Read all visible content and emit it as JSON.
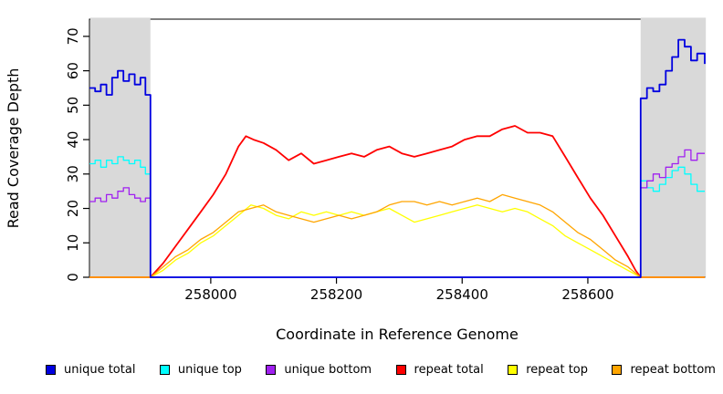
{
  "chart_data": {
    "type": "line",
    "title": "",
    "xlabel": "Coordinate in Reference Genome",
    "ylabel": "Read Coverage Depth",
    "xlim": [
      257807,
      258786
    ],
    "ylim": [
      0,
      75
    ],
    "xticks": [
      258000,
      258200,
      258400,
      258600
    ],
    "yticks": [
      0,
      10,
      20,
      30,
      40,
      50,
      60,
      70
    ],
    "grid": "off",
    "shade_color": "#d9d9d9",
    "shaded_regions": [
      [
        257807,
        257904
      ],
      [
        258684,
        258786
      ]
    ],
    "legend_position": "bottom-horizontal",
    "legend": [
      {
        "label": "unique total",
        "color": "#0000e0"
      },
      {
        "label": "unique top",
        "color": "#00ffff"
      },
      {
        "label": "unique bottom",
        "color": "#a020f0"
      },
      {
        "label": "repeat total",
        "color": "#ff0000"
      },
      {
        "label": "repeat top",
        "color": "#ffff00"
      },
      {
        "label": "repeat bottom",
        "color": "#ffa500"
      }
    ],
    "series": [
      {
        "name": "repeat total",
        "color": "#ff0000",
        "width": 1.8,
        "step": false,
        "points": [
          [
            257807,
            0
          ],
          [
            257904,
            0
          ],
          [
            257924,
            4
          ],
          [
            257944,
            9
          ],
          [
            257964,
            14
          ],
          [
            257984,
            19
          ],
          [
            258004,
            24
          ],
          [
            258024,
            30
          ],
          [
            258044,
            38
          ],
          [
            258056,
            41
          ],
          [
            258068,
            40
          ],
          [
            258084,
            39
          ],
          [
            258104,
            37
          ],
          [
            258124,
            34
          ],
          [
            258144,
            36
          ],
          [
            258164,
            33
          ],
          [
            258184,
            34
          ],
          [
            258204,
            35
          ],
          [
            258224,
            36
          ],
          [
            258244,
            35
          ],
          [
            258264,
            37
          ],
          [
            258284,
            38
          ],
          [
            258304,
            36
          ],
          [
            258324,
            35
          ],
          [
            258344,
            36
          ],
          [
            258364,
            37
          ],
          [
            258384,
            38
          ],
          [
            258404,
            40
          ],
          [
            258424,
            41
          ],
          [
            258444,
            41
          ],
          [
            258464,
            43
          ],
          [
            258484,
            44
          ],
          [
            258504,
            42
          ],
          [
            258524,
            42
          ],
          [
            258544,
            41
          ],
          [
            258564,
            35
          ],
          [
            258584,
            29
          ],
          [
            258604,
            23
          ],
          [
            258624,
            18
          ],
          [
            258644,
            12
          ],
          [
            258664,
            6
          ],
          [
            258676,
            2
          ],
          [
            258684,
            0
          ],
          [
            258786,
            0
          ]
        ]
      },
      {
        "name": "repeat top",
        "color": "#ffff00",
        "width": 1.3,
        "step": false,
        "points": [
          [
            257807,
            0
          ],
          [
            257904,
            0
          ],
          [
            257924,
            2
          ],
          [
            257944,
            5
          ],
          [
            257964,
            7
          ],
          [
            257984,
            10
          ],
          [
            258004,
            12
          ],
          [
            258024,
            15
          ],
          [
            258044,
            18
          ],
          [
            258064,
            21
          ],
          [
            258084,
            20
          ],
          [
            258104,
            18
          ],
          [
            258124,
            17
          ],
          [
            258144,
            19
          ],
          [
            258164,
            18
          ],
          [
            258184,
            19
          ],
          [
            258204,
            18
          ],
          [
            258224,
            19
          ],
          [
            258244,
            18
          ],
          [
            258264,
            19
          ],
          [
            258284,
            20
          ],
          [
            258304,
            18
          ],
          [
            258324,
            16
          ],
          [
            258344,
            17
          ],
          [
            258364,
            18
          ],
          [
            258384,
            19
          ],
          [
            258404,
            20
          ],
          [
            258424,
            21
          ],
          [
            258444,
            20
          ],
          [
            258464,
            19
          ],
          [
            258484,
            20
          ],
          [
            258504,
            19
          ],
          [
            258524,
            17
          ],
          [
            258544,
            15
          ],
          [
            258564,
            12
          ],
          [
            258584,
            10
          ],
          [
            258604,
            8
          ],
          [
            258624,
            6
          ],
          [
            258644,
            4
          ],
          [
            258664,
            2
          ],
          [
            258684,
            0
          ],
          [
            258786,
            0
          ]
        ]
      },
      {
        "name": "repeat bottom",
        "color": "#ffa500",
        "width": 1.3,
        "step": false,
        "points": [
          [
            257807,
            0
          ],
          [
            257904,
            0
          ],
          [
            257924,
            3
          ],
          [
            257944,
            6
          ],
          [
            257964,
            8
          ],
          [
            257984,
            11
          ],
          [
            258004,
            13
          ],
          [
            258024,
            16
          ],
          [
            258044,
            19
          ],
          [
            258064,
            20
          ],
          [
            258084,
            21
          ],
          [
            258104,
            19
          ],
          [
            258124,
            18
          ],
          [
            258144,
            17
          ],
          [
            258164,
            16
          ],
          [
            258184,
            17
          ],
          [
            258204,
            18
          ],
          [
            258224,
            17
          ],
          [
            258244,
            18
          ],
          [
            258264,
            19
          ],
          [
            258284,
            21
          ],
          [
            258304,
            22
          ],
          [
            258324,
            22
          ],
          [
            258344,
            21
          ],
          [
            258364,
            22
          ],
          [
            258384,
            21
          ],
          [
            258404,
            22
          ],
          [
            258424,
            23
          ],
          [
            258444,
            22
          ],
          [
            258464,
            24
          ],
          [
            258484,
            23
          ],
          [
            258504,
            22
          ],
          [
            258524,
            21
          ],
          [
            258544,
            19
          ],
          [
            258564,
            16
          ],
          [
            258584,
            13
          ],
          [
            258604,
            11
          ],
          [
            258624,
            8
          ],
          [
            258644,
            5
          ],
          [
            258664,
            3
          ],
          [
            258684,
            0
          ],
          [
            258786,
            0
          ]
        ]
      },
      {
        "name": "unique top",
        "color": "#00ffff",
        "width": 1.3,
        "step": true,
        "points": [
          [
            257807,
            33
          ],
          [
            257816,
            34
          ],
          [
            257825,
            32
          ],
          [
            257834,
            34
          ],
          [
            257843,
            33
          ],
          [
            257852,
            35
          ],
          [
            257861,
            34
          ],
          [
            257870,
            33
          ],
          [
            257879,
            34
          ],
          [
            257888,
            32
          ],
          [
            257896,
            30
          ],
          [
            257904,
            30
          ],
          [
            257904,
            0
          ],
          [
            258684,
            0
          ],
          [
            258684,
            28
          ],
          [
            258694,
            26
          ],
          [
            258704,
            25
          ],
          [
            258714,
            27
          ],
          [
            258724,
            29
          ],
          [
            258734,
            31
          ],
          [
            258744,
            32
          ],
          [
            258754,
            30
          ],
          [
            258764,
            27
          ],
          [
            258774,
            25
          ],
          [
            258786,
            25
          ]
        ]
      },
      {
        "name": "unique bottom",
        "color": "#a020f0",
        "width": 1.3,
        "step": true,
        "points": [
          [
            257807,
            22
          ],
          [
            257816,
            23
          ],
          [
            257825,
            22
          ],
          [
            257834,
            24
          ],
          [
            257843,
            23
          ],
          [
            257852,
            25
          ],
          [
            257861,
            26
          ],
          [
            257870,
            24
          ],
          [
            257879,
            23
          ],
          [
            257888,
            22
          ],
          [
            257896,
            23
          ],
          [
            257904,
            22
          ],
          [
            257904,
            0
          ],
          [
            258684,
            0
          ],
          [
            258684,
            26
          ],
          [
            258694,
            28
          ],
          [
            258704,
            30
          ],
          [
            258714,
            29
          ],
          [
            258724,
            32
          ],
          [
            258734,
            33
          ],
          [
            258744,
            35
          ],
          [
            258754,
            37
          ],
          [
            258764,
            34
          ],
          [
            258774,
            36
          ],
          [
            258786,
            36
          ]
        ]
      },
      {
        "name": "unique total",
        "color": "#0000e0",
        "width": 1.8,
        "step": true,
        "points": [
          [
            257807,
            55
          ],
          [
            257816,
            54
          ],
          [
            257825,
            56
          ],
          [
            257834,
            53
          ],
          [
            257843,
            58
          ],
          [
            257852,
            60
          ],
          [
            257861,
            57
          ],
          [
            257870,
            59
          ],
          [
            257879,
            56
          ],
          [
            257888,
            58
          ],
          [
            257896,
            53
          ],
          [
            257904,
            52
          ],
          [
            257904,
            0
          ],
          [
            258684,
            0
          ],
          [
            258684,
            52
          ],
          [
            258694,
            55
          ],
          [
            258704,
            54
          ],
          [
            258714,
            56
          ],
          [
            258724,
            60
          ],
          [
            258734,
            64
          ],
          [
            258744,
            69
          ],
          [
            258754,
            67
          ],
          [
            258764,
            63
          ],
          [
            258774,
            65
          ],
          [
            258786,
            62
          ]
        ]
      }
    ]
  }
}
